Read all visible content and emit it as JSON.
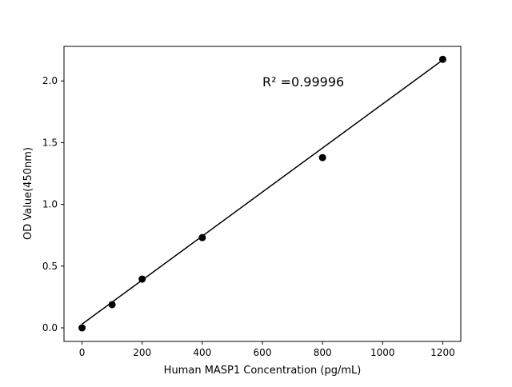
{
  "chart_data": {
    "type": "scatter",
    "title": "",
    "xlabel": "Human MASP1 Concentration (pg/mL)",
    "ylabel": "OD Value(450nm)",
    "xlim": [
      -60,
      1260
    ],
    "ylim": [
      -0.11,
      2.28
    ],
    "xticks": [
      0,
      200,
      400,
      600,
      800,
      1000,
      1200
    ],
    "yticks": [
      0.0,
      0.5,
      1.0,
      1.5,
      2.0
    ],
    "xtick_labels": [
      "0",
      "200",
      "400",
      "600",
      "800",
      "1000",
      "1200"
    ],
    "ytick_labels": [
      "0.0",
      "0.5",
      "1.0",
      "1.5",
      "2.0"
    ],
    "grid": false,
    "points": {
      "x": [
        0,
        100,
        200,
        400,
        800,
        1200
      ],
      "y": [
        0.0,
        0.188,
        0.395,
        0.731,
        1.379,
        2.175
      ]
    },
    "fit_line": {
      "x": [
        0,
        1200
      ],
      "y": [
        0.03,
        2.17
      ]
    },
    "annotation": "R² =0.99996",
    "colors": {
      "points": "#000000",
      "line": "#000000"
    }
  }
}
